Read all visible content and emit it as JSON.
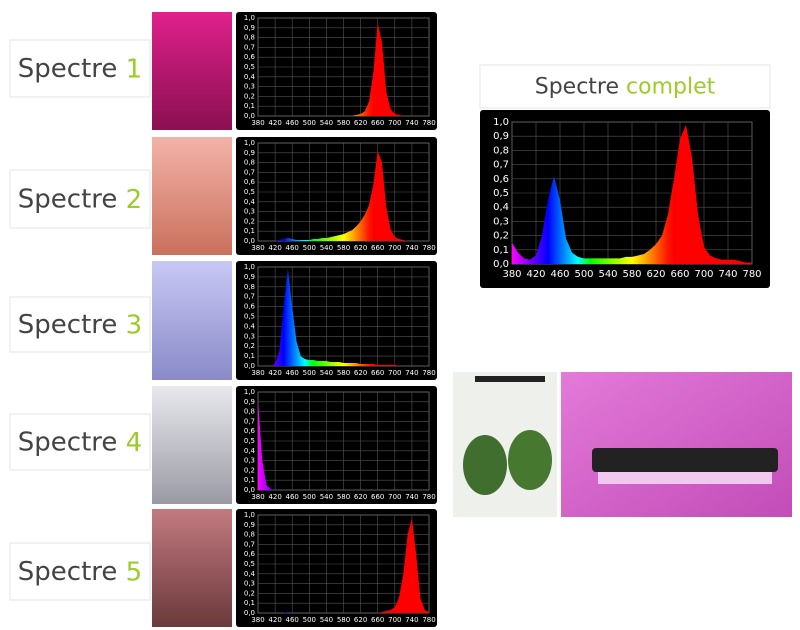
{
  "chart_data": [
    {
      "type": "area",
      "title": "Spectre 1",
      "x": [
        380,
        390,
        400,
        410,
        420,
        430,
        440,
        450,
        460,
        470,
        480,
        490,
        500,
        510,
        520,
        530,
        540,
        550,
        560,
        570,
        580,
        590,
        600,
        610,
        620,
        630,
        640,
        650,
        660,
        670,
        680,
        690,
        700,
        710,
        720,
        730,
        740,
        750,
        760,
        770,
        780
      ],
      "values": [
        0,
        0,
        0,
        0,
        0,
        0,
        0,
        0,
        0,
        0,
        0,
        0,
        0,
        0,
        0,
        0,
        0,
        0,
        0,
        0,
        0,
        0,
        0,
        0.01,
        0.02,
        0.05,
        0.15,
        0.45,
        0.95,
        0.75,
        0.25,
        0.07,
        0.02,
        0.01,
        0,
        0,
        0,
        0,
        0,
        0,
        0
      ],
      "xlim": [
        380,
        780
      ],
      "ylim": [
        0,
        1
      ],
      "xticks": [
        380,
        420,
        460,
        500,
        540,
        580,
        620,
        660,
        700,
        740,
        780
      ],
      "yticks": [
        {
          "value": 0,
          "label": "0,0"
        },
        {
          "value": 0.1,
          "label": "0,1"
        },
        {
          "value": 0.2,
          "label": "0,2"
        },
        {
          "value": 0.3,
          "label": "0,3"
        },
        {
          "value": 0.4,
          "label": "0,4"
        },
        {
          "value": 0.5,
          "label": "0,5"
        },
        {
          "value": 0.6,
          "label": "0,6"
        },
        {
          "value": 0.7,
          "label": "0,7"
        },
        {
          "value": 0.8,
          "label": "0,8"
        },
        {
          "value": 0.9,
          "label": "0,9"
        },
        {
          "value": 1,
          "label": "1,0"
        }
      ],
      "grid": true
    },
    {
      "type": "area",
      "title": "Spectre 2",
      "x": [
        380,
        390,
        400,
        410,
        420,
        430,
        440,
        450,
        460,
        470,
        480,
        490,
        500,
        510,
        520,
        530,
        540,
        550,
        560,
        570,
        580,
        590,
        600,
        610,
        620,
        630,
        640,
        650,
        660,
        670,
        680,
        690,
        700,
        710,
        720,
        730,
        740,
        750,
        760,
        770,
        780
      ],
      "values": [
        0,
        0,
        0,
        0,
        0,
        0.01,
        0.02,
        0.03,
        0.02,
        0.01,
        0.01,
        0.01,
        0.01,
        0.02,
        0.02,
        0.03,
        0.03,
        0.04,
        0.05,
        0.06,
        0.07,
        0.09,
        0.11,
        0.15,
        0.2,
        0.27,
        0.37,
        0.58,
        0.92,
        0.8,
        0.35,
        0.12,
        0.04,
        0.02,
        0.01,
        0,
        0,
        0,
        0,
        0,
        0
      ],
      "xlim": [
        380,
        780
      ],
      "ylim": [
        0,
        1
      ],
      "xticks": [
        380,
        420,
        460,
        500,
        540,
        580,
        620,
        660,
        700,
        740,
        780
      ],
      "yticks": [
        {
          "value": 0,
          "label": "0,0"
        },
        {
          "value": 0.1,
          "label": "0,1"
        },
        {
          "value": 0.2,
          "label": "0,2"
        },
        {
          "value": 0.3,
          "label": "0,3"
        },
        {
          "value": 0.4,
          "label": "0,4"
        },
        {
          "value": 0.5,
          "label": "0,5"
        },
        {
          "value": 0.6,
          "label": "0,6"
        },
        {
          "value": 0.7,
          "label": "0,7"
        },
        {
          "value": 0.8,
          "label": "0,8"
        },
        {
          "value": 0.9,
          "label": "0,9"
        },
        {
          "value": 1,
          "label": "1,0"
        }
      ],
      "grid": true
    },
    {
      "type": "area",
      "title": "Spectre 3",
      "x": [
        380,
        390,
        400,
        410,
        420,
        430,
        440,
        450,
        460,
        470,
        480,
        490,
        500,
        510,
        520,
        530,
        540,
        550,
        560,
        570,
        580,
        590,
        600,
        610,
        620,
        630,
        640,
        650,
        660,
        670,
        680,
        690,
        700,
        710,
        720,
        730,
        740,
        750,
        760,
        770,
        780
      ],
      "values": [
        0,
        0,
        0,
        0,
        0.02,
        0.15,
        0.6,
        0.98,
        0.6,
        0.25,
        0.1,
        0.07,
        0.06,
        0.06,
        0.05,
        0.05,
        0.05,
        0.04,
        0.04,
        0.04,
        0.03,
        0.03,
        0.03,
        0.03,
        0.02,
        0.02,
        0.02,
        0.02,
        0.01,
        0.01,
        0.01,
        0.01,
        0.01,
        0,
        0,
        0,
        0,
        0,
        0,
        0,
        0
      ],
      "xlim": [
        380,
        780
      ],
      "ylim": [
        0,
        1
      ],
      "xticks": [
        380,
        420,
        460,
        500,
        540,
        580,
        620,
        660,
        700,
        740,
        780
      ],
      "yticks": [
        {
          "value": 0,
          "label": "0,0"
        },
        {
          "value": 0.1,
          "label": "0,1"
        },
        {
          "value": 0.2,
          "label": "0,2"
        },
        {
          "value": 0.3,
          "label": "0,3"
        },
        {
          "value": 0.4,
          "label": "0,4"
        },
        {
          "value": 0.5,
          "label": "0,5"
        },
        {
          "value": 0.6,
          "label": "0,6"
        },
        {
          "value": 0.7,
          "label": "0,7"
        },
        {
          "value": 0.8,
          "label": "0,8"
        },
        {
          "value": 0.9,
          "label": "0,9"
        },
        {
          "value": 1,
          "label": "1,0"
        }
      ],
      "grid": true
    },
    {
      "type": "area",
      "title": "Spectre 4",
      "x": [
        380,
        390,
        400,
        410,
        420,
        430,
        440,
        450,
        460,
        470,
        480,
        490,
        500,
        510,
        520,
        530,
        540,
        550,
        560,
        570,
        580,
        590,
        600,
        610,
        620,
        630,
        640,
        650,
        660,
        670,
        680,
        690,
        700,
        710,
        720,
        730,
        740,
        750,
        760,
        770,
        780
      ],
      "values": [
        0.92,
        0.3,
        0.05,
        0.01,
        0,
        0,
        0,
        0,
        0,
        0,
        0,
        0,
        0,
        0,
        0,
        0,
        0,
        0,
        0,
        0,
        0,
        0,
        0,
        0,
        0,
        0,
        0,
        0,
        0,
        0,
        0,
        0,
        0,
        0,
        0,
        0,
        0,
        0,
        0,
        0,
        0
      ],
      "xlim": [
        380,
        780
      ],
      "ylim": [
        0,
        1
      ],
      "xticks": [
        380,
        420,
        460,
        500,
        540,
        580,
        620,
        660,
        700,
        740,
        780
      ],
      "yticks": [
        {
          "value": 0,
          "label": "0,0"
        },
        {
          "value": 0.1,
          "label": "0,1"
        },
        {
          "value": 0.2,
          "label": "0,2"
        },
        {
          "value": 0.3,
          "label": "0,3"
        },
        {
          "value": 0.4,
          "label": "0,4"
        },
        {
          "value": 0.5,
          "label": "0,5"
        },
        {
          "value": 0.6,
          "label": "0,6"
        },
        {
          "value": 0.7,
          "label": "0,7"
        },
        {
          "value": 0.8,
          "label": "0,8"
        },
        {
          "value": 0.9,
          "label": "0,9"
        },
        {
          "value": 1,
          "label": "1,0"
        }
      ],
      "grid": true
    },
    {
      "type": "area",
      "title": "Spectre 5",
      "x": [
        380,
        390,
        400,
        410,
        420,
        430,
        440,
        450,
        460,
        470,
        480,
        490,
        500,
        510,
        520,
        530,
        540,
        550,
        560,
        570,
        580,
        590,
        600,
        610,
        620,
        630,
        640,
        650,
        660,
        670,
        680,
        690,
        700,
        710,
        720,
        730,
        740,
        750,
        760,
        770,
        780
      ],
      "values": [
        0,
        0,
        0,
        0,
        0,
        0,
        0,
        0.01,
        0,
        0,
        0,
        0,
        0,
        0,
        0,
        0,
        0,
        0,
        0,
        0,
        0,
        0,
        0,
        0,
        0,
        0,
        0,
        0,
        0,
        0.01,
        0.02,
        0.03,
        0.06,
        0.16,
        0.4,
        0.8,
        0.97,
        0.6,
        0.15,
        0.03,
        0.01
      ],
      "xlim": [
        380,
        780
      ],
      "ylim": [
        0,
        1
      ],
      "xticks": [
        380,
        420,
        460,
        500,
        540,
        580,
        620,
        660,
        700,
        740,
        780
      ],
      "yticks": [
        {
          "value": 0,
          "label": "0,0"
        },
        {
          "value": 0.1,
          "label": "0,1"
        },
        {
          "value": 0.2,
          "label": "0,2"
        },
        {
          "value": 0.3,
          "label": "0,3"
        },
        {
          "value": 0.4,
          "label": "0,4"
        },
        {
          "value": 0.5,
          "label": "0,5"
        },
        {
          "value": 0.6,
          "label": "0,6"
        },
        {
          "value": 0.7,
          "label": "0,7"
        },
        {
          "value": 0.8,
          "label": "0,8"
        },
        {
          "value": 0.9,
          "label": "0,9"
        },
        {
          "value": 1,
          "label": "1,0"
        }
      ],
      "grid": true
    },
    {
      "type": "area",
      "title": "Spectre complet",
      "x": [
        380,
        390,
        400,
        410,
        420,
        430,
        440,
        450,
        460,
        470,
        480,
        490,
        500,
        510,
        520,
        530,
        540,
        550,
        560,
        570,
        580,
        590,
        600,
        610,
        620,
        630,
        640,
        650,
        660,
        670,
        680,
        690,
        700,
        710,
        720,
        730,
        740,
        750,
        760,
        770,
        780
      ],
      "values": [
        0.15,
        0.08,
        0.04,
        0.03,
        0.06,
        0.2,
        0.45,
        0.62,
        0.45,
        0.18,
        0.08,
        0.05,
        0.04,
        0.04,
        0.04,
        0.04,
        0.04,
        0.04,
        0.04,
        0.05,
        0.05,
        0.06,
        0.07,
        0.1,
        0.14,
        0.2,
        0.35,
        0.6,
        0.88,
        0.98,
        0.75,
        0.35,
        0.12,
        0.06,
        0.04,
        0.03,
        0.03,
        0.03,
        0.02,
        0.01,
        0.01
      ],
      "xlim": [
        380,
        780
      ],
      "ylim": [
        0,
        1
      ],
      "xticks": [
        380,
        420,
        460,
        500,
        540,
        580,
        620,
        660,
        700,
        740,
        780
      ],
      "yticks": [
        {
          "value": 0,
          "label": "0,0"
        },
        {
          "value": 0.1,
          "label": "0,1"
        },
        {
          "value": 0.2,
          "label": "0,2"
        },
        {
          "value": 0.3,
          "label": "0,3"
        },
        {
          "value": 0.4,
          "label": "0,4"
        },
        {
          "value": 0.5,
          "label": "0,5"
        },
        {
          "value": 0.6,
          "label": "0,6"
        },
        {
          "value": 0.7,
          "label": "0,7"
        },
        {
          "value": 0.8,
          "label": "0,8"
        },
        {
          "value": 0.9,
          "label": "0,9"
        },
        {
          "value": 1,
          "label": "1,0"
        }
      ],
      "grid": true
    }
  ]
}
